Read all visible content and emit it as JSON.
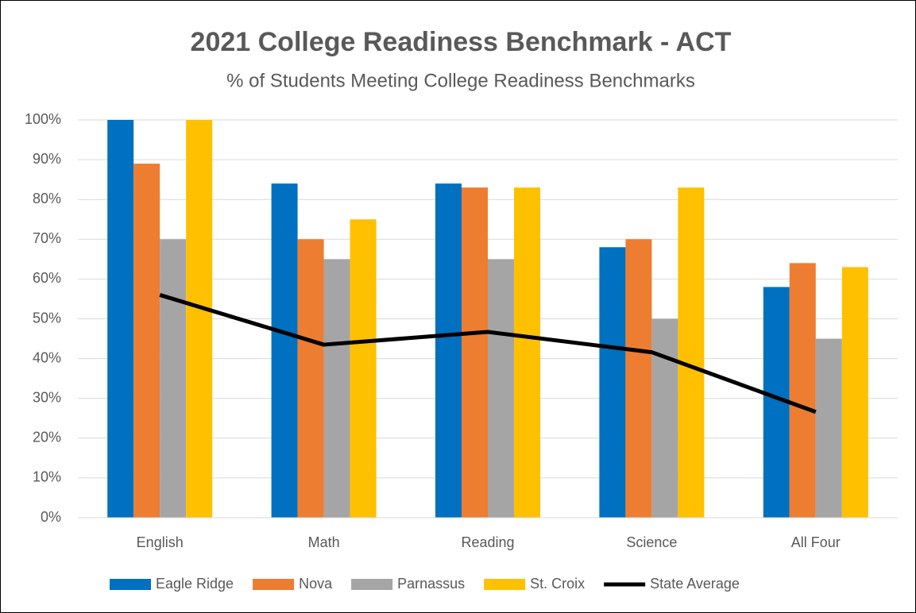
{
  "chart_data": {
    "type": "bar",
    "title": "2021 College Readiness Benchmark - ACT",
    "subtitle": "% of Students Meeting College Readiness Benchmarks",
    "categories": [
      "English",
      "Math",
      "Reading",
      "Science",
      "All Four"
    ],
    "series": [
      {
        "name": "Eagle Ridge",
        "color": "#0070c0",
        "values": [
          100,
          84,
          84,
          68,
          58
        ]
      },
      {
        "name": "Nova",
        "color": "#ed7d31",
        "values": [
          89,
          70,
          83,
          70,
          64
        ]
      },
      {
        "name": "Parnassus",
        "color": "#a5a5a5",
        "values": [
          70,
          65,
          65,
          50,
          45
        ]
      },
      {
        "name": "St. Croix",
        "color": "#ffc000",
        "values": [
          100,
          75,
          83,
          83,
          63
        ]
      },
      {
        "name": "State Average",
        "color": "#000000",
        "type": "line",
        "values": [
          56,
          43.5,
          46.7,
          41.6,
          26.6
        ]
      }
    ],
    "ylim": [
      0,
      100
    ],
    "yticks": [
      {
        "value": 0,
        "label": "0%"
      },
      {
        "value": 10,
        "label": "10%"
      },
      {
        "value": 20,
        "label": "20%"
      },
      {
        "value": 30,
        "label": "30%"
      },
      {
        "value": 40,
        "label": "40%"
      },
      {
        "value": 50,
        "label": "50%"
      },
      {
        "value": 60,
        "label": "60%"
      },
      {
        "value": 70,
        "label": "70%"
      },
      {
        "value": 80,
        "label": "80%"
      },
      {
        "value": 90,
        "label": "90%"
      },
      {
        "value": 100,
        "label": "100%"
      }
    ],
    "grid": true,
    "legend": "bottom"
  }
}
